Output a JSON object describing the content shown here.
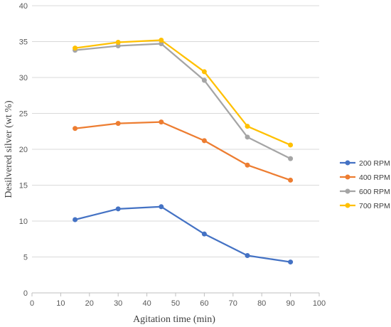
{
  "chart_data": {
    "type": "line",
    "title": "",
    "xlabel": "Agitation time (min)",
    "ylabel": "Desilvered silver (wt %)",
    "xlim": [
      0,
      100
    ],
    "ylim": [
      0,
      40
    ],
    "xticks": [
      0,
      10,
      20,
      30,
      40,
      50,
      60,
      70,
      80,
      90,
      100
    ],
    "yticks": [
      0,
      5,
      10,
      15,
      20,
      25,
      30,
      35,
      40
    ],
    "grid": "horizontal",
    "legend_position": "right",
    "x": [
      15,
      30,
      45,
      60,
      75,
      90
    ],
    "series": [
      {
        "name": "200 RPM",
        "color": "#4472C4",
        "values": [
          10.2,
          11.7,
          12.0,
          8.2,
          5.2,
          4.3
        ]
      },
      {
        "name": "400 RPM",
        "color": "#ED7D31",
        "values": [
          22.9,
          23.6,
          23.8,
          21.2,
          17.8,
          15.7
        ]
      },
      {
        "name": "600 RPM",
        "color": "#A5A5A5",
        "values": [
          33.8,
          34.4,
          34.7,
          29.6,
          21.7,
          18.7
        ]
      },
      {
        "name": "700 RPM",
        "color": "#FFC000",
        "values": [
          34.1,
          34.9,
          35.2,
          30.8,
          23.2,
          20.6
        ]
      }
    ]
  }
}
